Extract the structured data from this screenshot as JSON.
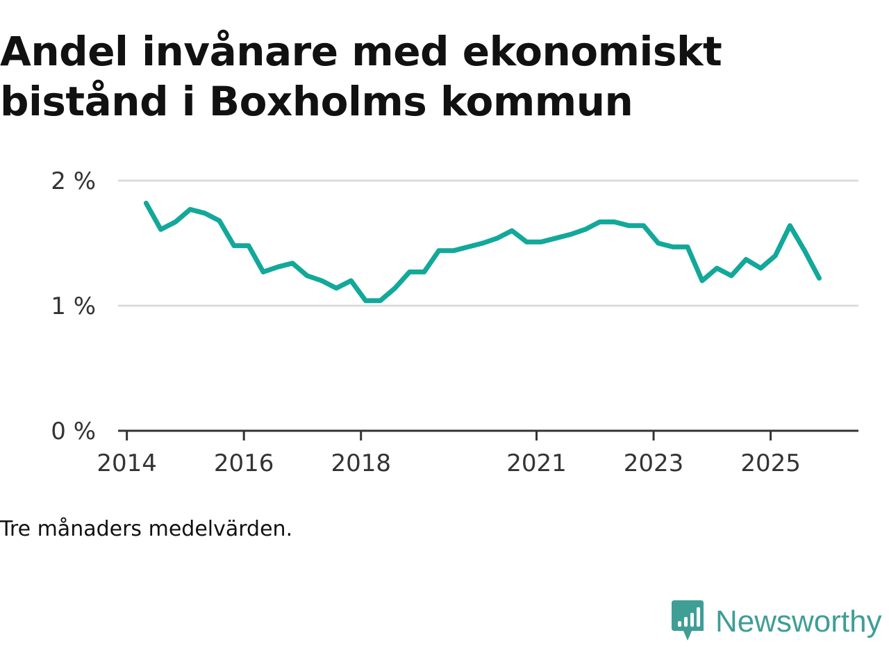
{
  "title": "Andel invånare med ekonomiskt bistånd i Boxholms kommun",
  "note": "Tre månaders medelvärden.",
  "brand": {
    "name": "Newsworthy",
    "icon": "newsworthy-logo-icon",
    "color": "#3f9e96"
  },
  "colors": {
    "line": "#12a89a",
    "grid": "#dcdcdc",
    "axis": "#333333",
    "tick_text": "#333333"
  },
  "chart_data": {
    "type": "line",
    "title": "Andel invånare med ekonomiskt bistånd i Boxholms kommun",
    "xlabel": "",
    "ylabel": "",
    "ylim": [
      0,
      2
    ],
    "yticks": [
      {
        "value": 0,
        "label": "0 %"
      },
      {
        "value": 1,
        "label": "1 %"
      },
      {
        "value": 2,
        "label": "2 %"
      }
    ],
    "xlim": [
      2013.85,
      2026.5
    ],
    "xticks": [
      {
        "value": 2014,
        "label": "2014"
      },
      {
        "value": 2016,
        "label": "2016"
      },
      {
        "value": 2018,
        "label": "2018"
      },
      {
        "value": 2021,
        "label": "2021"
      },
      {
        "value": 2023,
        "label": "2023"
      },
      {
        "value": 2025,
        "label": "2025"
      }
    ],
    "grid": true,
    "series": [
      {
        "name": "Andel invånare med ekonomiskt bistånd",
        "x": [
          2014.33,
          2014.58,
          2014.83,
          2015.08,
          2015.33,
          2015.58,
          2015.83,
          2016.08,
          2016.33,
          2016.58,
          2016.83,
          2017.08,
          2017.33,
          2017.58,
          2017.83,
          2018.08,
          2018.33,
          2018.58,
          2018.83,
          2019.08,
          2019.33,
          2019.58,
          2019.83,
          2020.08,
          2020.33,
          2020.58,
          2020.83,
          2021.08,
          2021.33,
          2021.58,
          2021.83,
          2022.08,
          2022.33,
          2022.58,
          2022.83,
          2023.08,
          2023.33,
          2023.58,
          2023.83,
          2024.08,
          2024.33,
          2024.58,
          2024.83,
          2025.08,
          2025.33,
          2025.58,
          2025.83
        ],
        "values": [
          1.82,
          1.61,
          1.67,
          1.77,
          1.74,
          1.68,
          1.48,
          1.48,
          1.27,
          1.31,
          1.34,
          1.24,
          1.2,
          1.14,
          1.2,
          1.04,
          1.04,
          1.14,
          1.27,
          1.27,
          1.44,
          1.44,
          1.47,
          1.5,
          1.54,
          1.6,
          1.51,
          1.51,
          1.54,
          1.57,
          1.61,
          1.67,
          1.67,
          1.64,
          1.64,
          1.5,
          1.47,
          1.47,
          1.2,
          1.3,
          1.24,
          1.37,
          1.3,
          1.4,
          1.64,
          1.44,
          1.22
        ]
      }
    ]
  }
}
